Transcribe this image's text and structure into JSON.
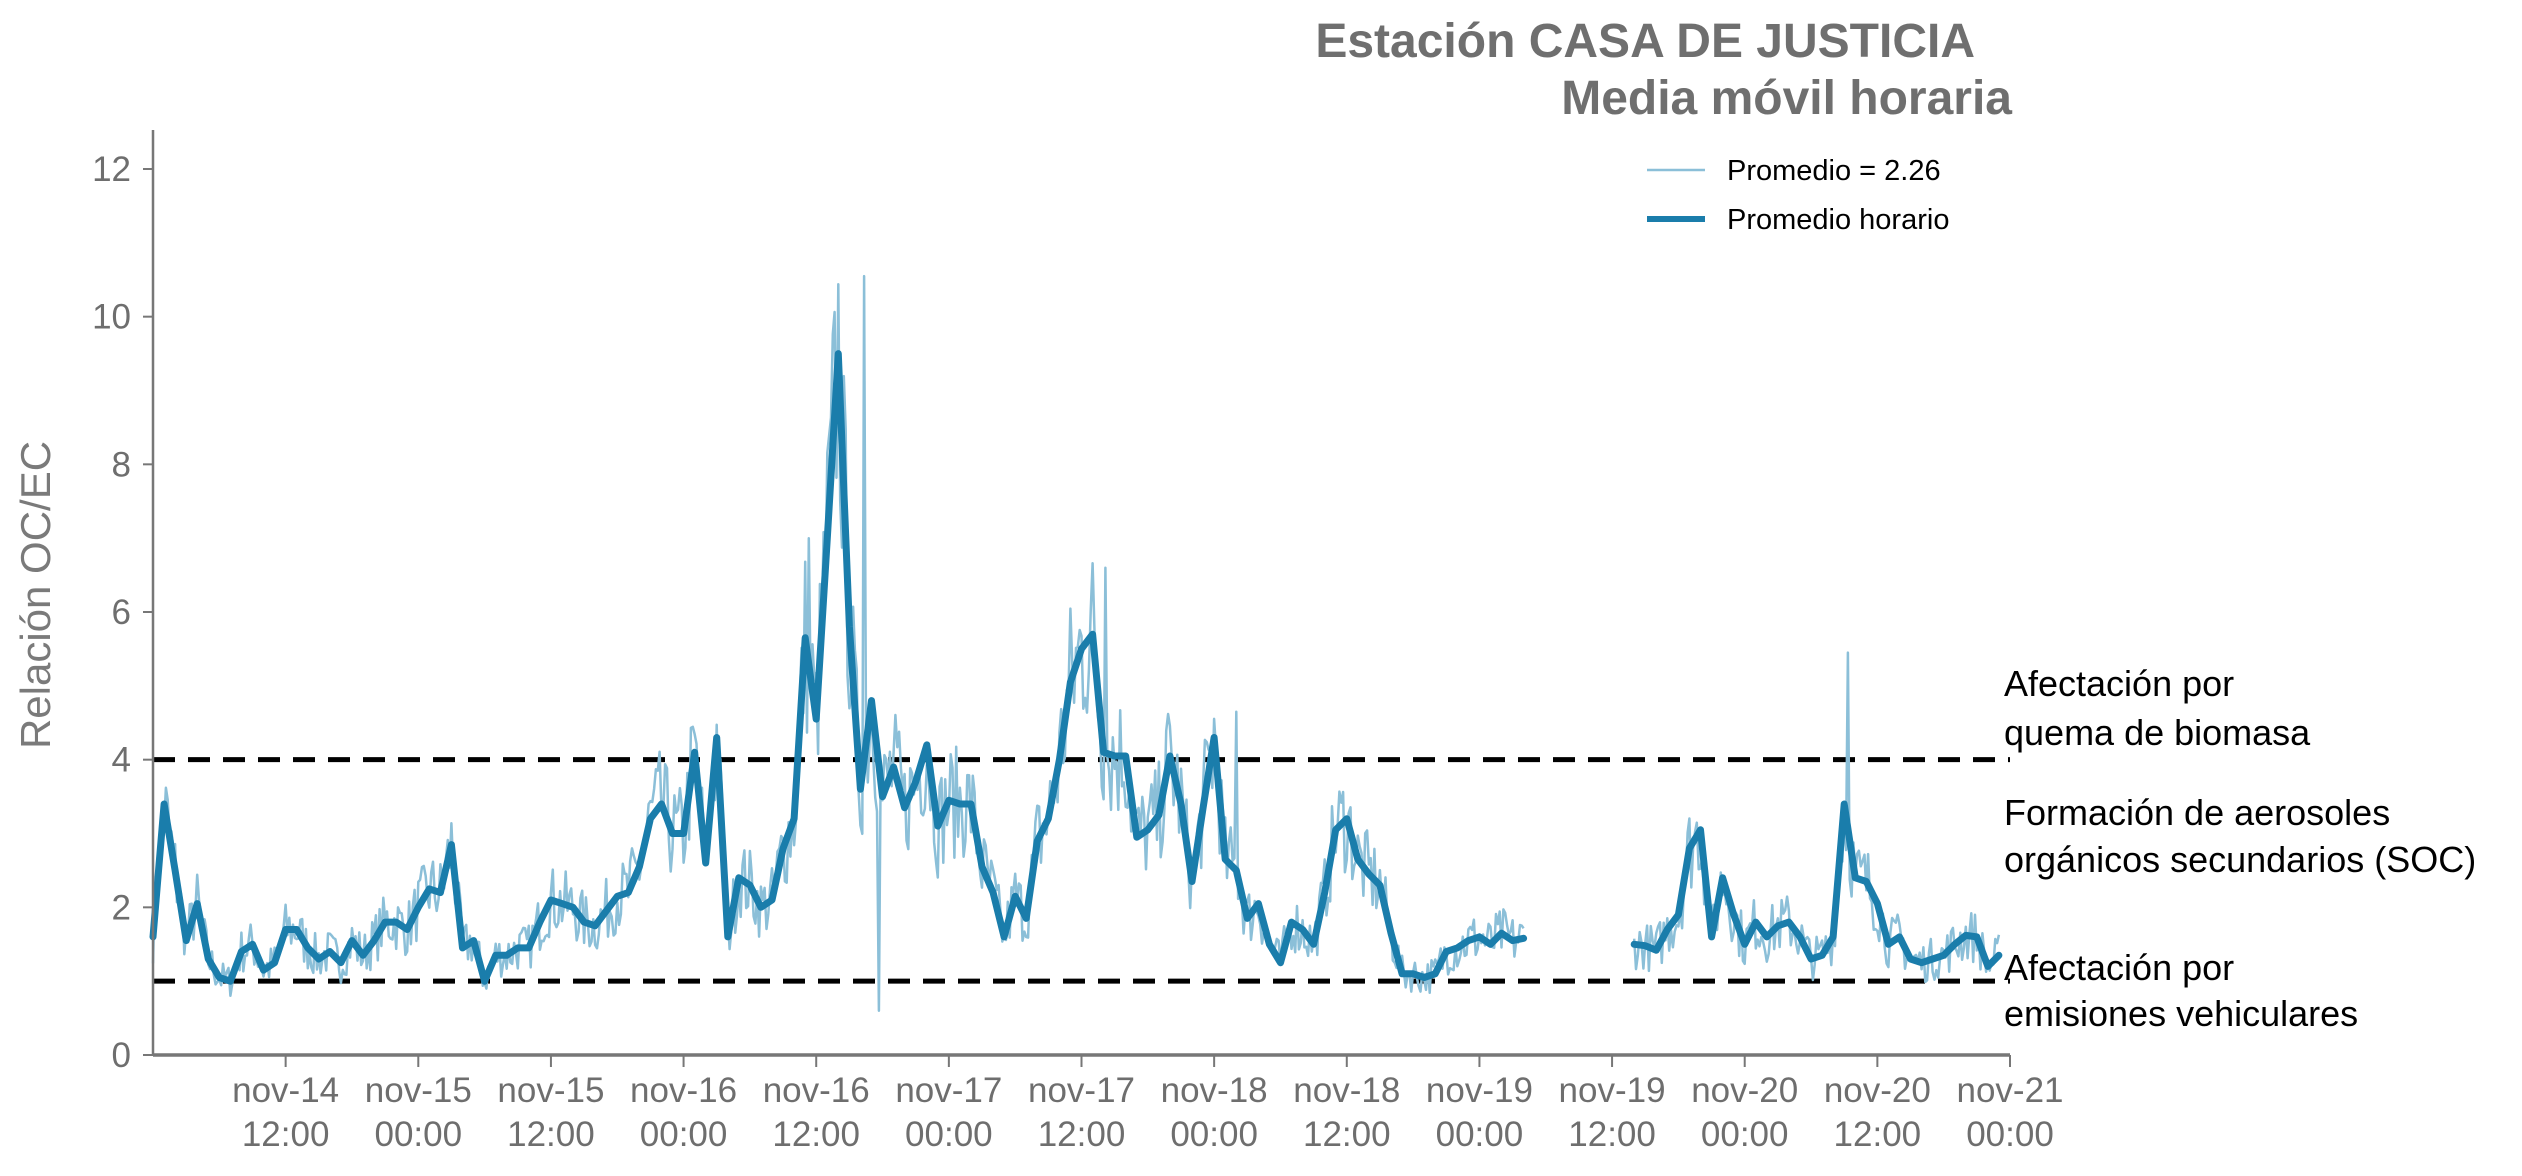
{
  "chart_data": {
    "type": "line",
    "title": [
      "Estación CASA DE JUSTICIA",
      "Media móvil horaria"
    ],
    "xlabel": "",
    "ylabel": "Relación OC/EC",
    "ylim": [
      0,
      12.5
    ],
    "yticks": [
      0,
      2,
      4,
      6,
      8,
      10,
      12
    ],
    "x_unit": "hours since nov-14 00:00",
    "xlim": [
      0,
      168
    ],
    "xticks": [
      {
        "hour": 12,
        "label": [
          "nov-14",
          "12:00"
        ]
      },
      {
        "hour": 24,
        "label": [
          "nov-15",
          "00:00"
        ]
      },
      {
        "hour": 36,
        "label": [
          "nov-15",
          "12:00"
        ]
      },
      {
        "hour": 48,
        "label": [
          "nov-16",
          "00:00"
        ]
      },
      {
        "hour": 60,
        "label": [
          "nov-16",
          "12:00"
        ]
      },
      {
        "hour": 72,
        "label": [
          "nov-17",
          "00:00"
        ]
      },
      {
        "hour": 84,
        "label": [
          "nov-17",
          "12:00"
        ]
      },
      {
        "hour": 96,
        "label": [
          "nov-18",
          "00:00"
        ]
      },
      {
        "hour": 108,
        "label": [
          "nov-18",
          "12:00"
        ]
      },
      {
        "hour": 120,
        "label": [
          "nov-19",
          "00:00"
        ]
      },
      {
        "hour": 132,
        "label": [
          "nov-19",
          "12:00"
        ]
      },
      {
        "hour": 144,
        "label": [
          "nov-20",
          "00:00"
        ]
      },
      {
        "hour": 156,
        "label": [
          "nov-20",
          "12:00"
        ]
      },
      {
        "hour": 168,
        "label": [
          "nov-21",
          "00:00"
        ]
      }
    ],
    "legend_position": "top-right",
    "series": [
      {
        "name": "Promedio = 2.26",
        "style": "thin",
        "color": "#8bbfd8",
        "note": "10-minute data; noisy around hourly mean",
        "spikes": [
          {
            "hour": 64.3,
            "value": 10.55
          },
          {
            "hour": 65.7,
            "value": 0.6
          },
          {
            "hour": 86.2,
            "value": 6.6
          },
          {
            "hour": 59.3,
            "value": 7.0
          },
          {
            "hour": 98.0,
            "value": 4.65
          },
          {
            "hour": 153.4,
            "value": 5.45
          }
        ]
      },
      {
        "name": "Promedio horario",
        "style": "thick",
        "color": "#1a7dab",
        "segments": [
          {
            "start_hour": 0,
            "values": [
              1.6,
              3.4,
              2.5,
              1.55,
              2.05,
              1.3,
              1.05,
              1.0,
              1.4,
              1.5,
              1.15,
              1.25,
              1.7,
              1.7,
              1.45,
              1.3,
              1.4,
              1.25,
              1.55,
              1.35,
              1.55,
              1.8,
              1.8,
              1.7,
              2.0,
              2.25,
              2.2,
              2.85,
              1.45,
              1.55,
              1.0,
              1.35,
              1.35,
              1.45,
              1.45,
              1.8,
              2.1,
              2.05,
              2.0,
              1.8,
              1.75,
              1.95,
              2.15,
              2.2,
              2.55,
              3.2,
              3.4,
              3.0,
              3.0,
              4.1,
              2.6,
              4.3,
              1.6,
              2.4,
              2.3,
              2.0,
              2.1,
              2.8,
              3.2,
              5.65,
              4.55,
              7.0,
              9.5,
              5.8,
              3.6,
              4.8,
              3.5,
              3.9,
              3.35,
              3.7,
              4.2,
              3.1,
              3.45,
              3.4,
              3.4,
              2.55,
              2.2,
              1.6,
              2.15,
              1.85,
              2.9,
              3.2,
              4.0,
              5.05,
              5.5,
              5.7,
              4.1,
              4.05,
              4.05,
              2.95,
              3.05,
              3.25,
              4.05,
              3.4,
              2.35,
              3.35,
              4.3,
              2.65,
              2.5,
              1.85,
              2.05,
              1.5,
              1.25,
              1.8,
              1.7,
              1.5,
              2.2,
              3.05,
              3.2,
              2.65,
              2.45,
              2.3,
              1.65,
              1.1,
              1.1,
              1.05,
              1.1,
              1.4,
              1.45,
              1.55,
              1.6,
              1.5,
              1.65,
              1.55,
              1.58
            ]
          },
          {
            "start_hour": 134,
            "values": [
              1.5,
              1.48,
              1.42,
              1.7,
              1.9,
              2.8,
              3.05,
              1.6,
              2.4,
              1.9,
              1.5,
              1.8,
              1.6,
              1.75,
              1.8,
              1.6,
              1.3,
              1.35,
              1.6,
              3.4,
              2.4,
              2.35,
              2.05,
              1.5,
              1.6,
              1.3,
              1.25,
              1.3,
              1.35,
              1.5,
              1.62,
              1.6,
              1.2,
              1.35
            ]
          }
        ]
      }
    ],
    "reference_lines": [
      {
        "y": 4,
        "style": "dashed",
        "color": "#000000"
      },
      {
        "y": 1,
        "style": "dashed",
        "color": "#000000"
      }
    ],
    "annotations": [
      {
        "lines": [
          "Afectación por",
          "quema de biomasa"
        ]
      },
      {
        "lines": [
          "Formación de aerosoles",
          "orgánicos secundarios (SOC)"
        ]
      },
      {
        "lines": [
          "Afectación por",
          "emisiones vehiculares"
        ]
      }
    ]
  }
}
